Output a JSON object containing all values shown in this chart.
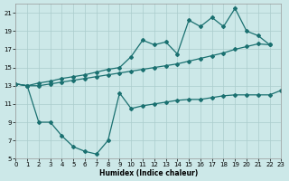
{
  "xlabel": "Humidex (Indice chaleur)",
  "background_color": "#cce8e8",
  "grid_color": "#aacccc",
  "line_color": "#1a7070",
  "xlim": [
    0,
    23
  ],
  "ylim": [
    5,
    22
  ],
  "xticks": [
    0,
    1,
    2,
    3,
    4,
    5,
    6,
    7,
    8,
    9,
    10,
    11,
    12,
    13,
    14,
    15,
    16,
    17,
    18,
    19,
    20,
    21,
    22,
    23
  ],
  "yticks": [
    5,
    7,
    9,
    11,
    13,
    15,
    17,
    19,
    21
  ],
  "line_top_x": [
    0,
    1,
    2,
    3,
    4,
    5,
    6,
    7,
    8,
    9,
    10,
    11,
    12,
    13,
    14,
    15,
    16,
    17,
    18,
    19,
    20,
    21,
    22
  ],
  "line_top_y": [
    13.2,
    13.0,
    13.3,
    13.5,
    13.8,
    14.0,
    14.2,
    14.5,
    14.8,
    15.0,
    16.2,
    18.0,
    17.5,
    17.8,
    16.5,
    20.2,
    19.5,
    20.5,
    19.5,
    21.5,
    19.0,
    18.5,
    17.5
  ],
  "line_mid_x": [
    0,
    1,
    2,
    3,
    4,
    5,
    6,
    7,
    8,
    9,
    10,
    11,
    12,
    13,
    14,
    15,
    16,
    17,
    18,
    19,
    20,
    21,
    22
  ],
  "line_mid_y": [
    13.2,
    13.0,
    13.0,
    13.2,
    13.4,
    13.6,
    13.8,
    14.0,
    14.2,
    14.4,
    14.6,
    14.8,
    15.0,
    15.2,
    15.4,
    15.7,
    16.0,
    16.3,
    16.6,
    17.0,
    17.3,
    17.6,
    17.5
  ],
  "line_bot_x": [
    0,
    1,
    2,
    3,
    4,
    5,
    6,
    7,
    8,
    9,
    10,
    11,
    12,
    13,
    14,
    15,
    16,
    17,
    18,
    19,
    20,
    21,
    22,
    23
  ],
  "line_bot_y": [
    13.2,
    13.0,
    9.0,
    9.0,
    7.5,
    6.3,
    5.8,
    5.5,
    7.0,
    12.2,
    10.5,
    10.8,
    11.0,
    11.2,
    11.4,
    11.5,
    11.5,
    11.7,
    11.9,
    12.0,
    12.0,
    12.0,
    12.0,
    12.5
  ]
}
